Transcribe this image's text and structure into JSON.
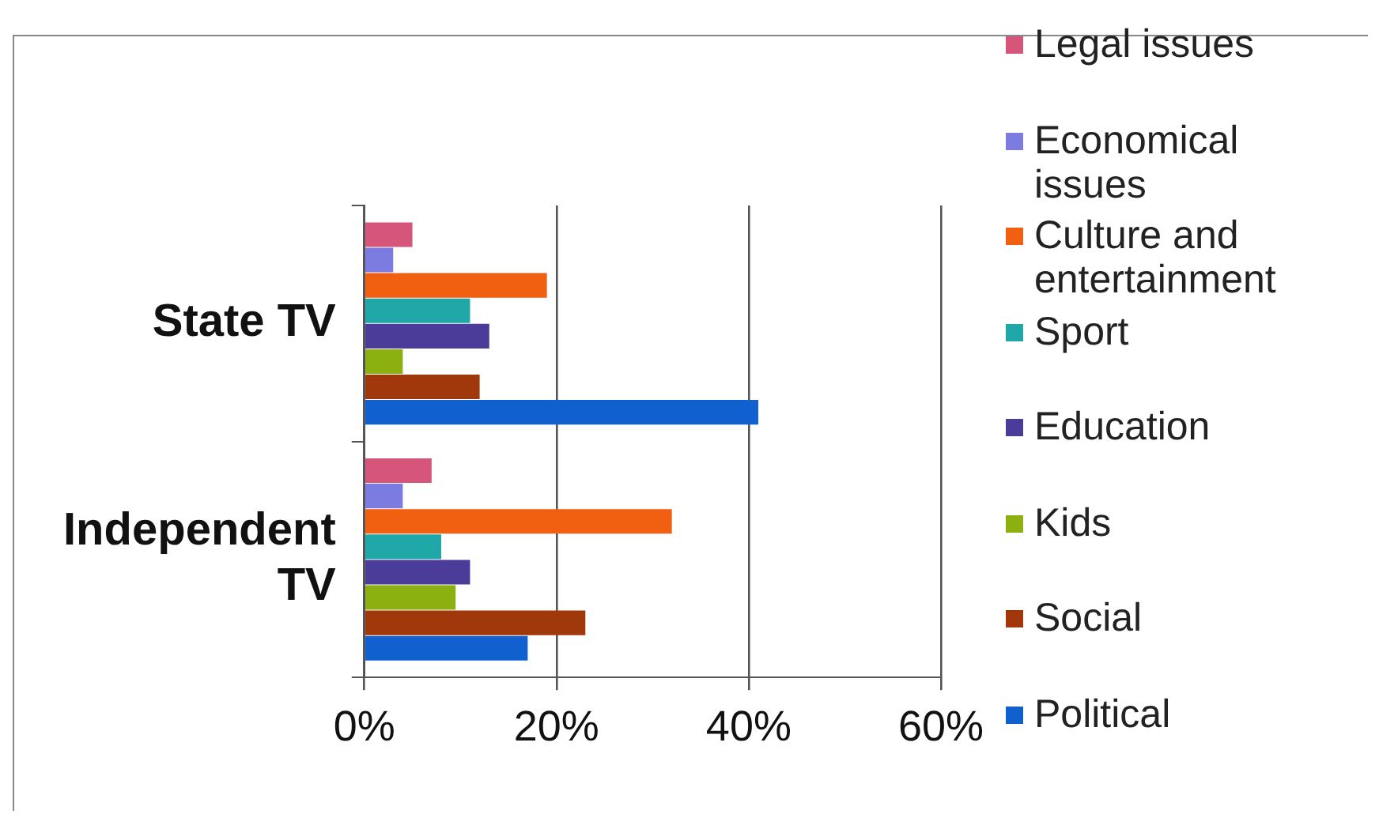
{
  "chart_data": {
    "type": "bar",
    "orientation": "horizontal",
    "categories": [
      "State TV",
      "Independent TV"
    ],
    "series": [
      {
        "name": "Legal issues",
        "color": "#d6557a",
        "values": [
          5,
          7
        ]
      },
      {
        "name": "Economical issues",
        "color": "#7b7be0",
        "values": [
          3,
          4
        ]
      },
      {
        "name": "Culture and entertainment",
        "color": "#f06010",
        "values": [
          19,
          32
        ]
      },
      {
        "name": "Sport",
        "color": "#20a8a8",
        "values": [
          11,
          8
        ]
      },
      {
        "name": "Education",
        "color": "#4a3c98",
        "values": [
          13,
          11
        ]
      },
      {
        "name": "Kids",
        "color": "#8cb010",
        "values": [
          4,
          9.5
        ]
      },
      {
        "name": "Social",
        "color": "#a0380c",
        "values": [
          12,
          23
        ]
      },
      {
        "name": "Political",
        "color": "#1060d0",
        "values": [
          41,
          17
        ]
      }
    ],
    "xlim": [
      0,
      60
    ],
    "xticks": [
      {
        "value": 0,
        "label": "0%"
      },
      {
        "value": 20,
        "label": "20%"
      },
      {
        "value": 40,
        "label": "40%"
      },
      {
        "value": 60,
        "label": "60%"
      }
    ],
    "grid": "x",
    "legend": "right"
  }
}
